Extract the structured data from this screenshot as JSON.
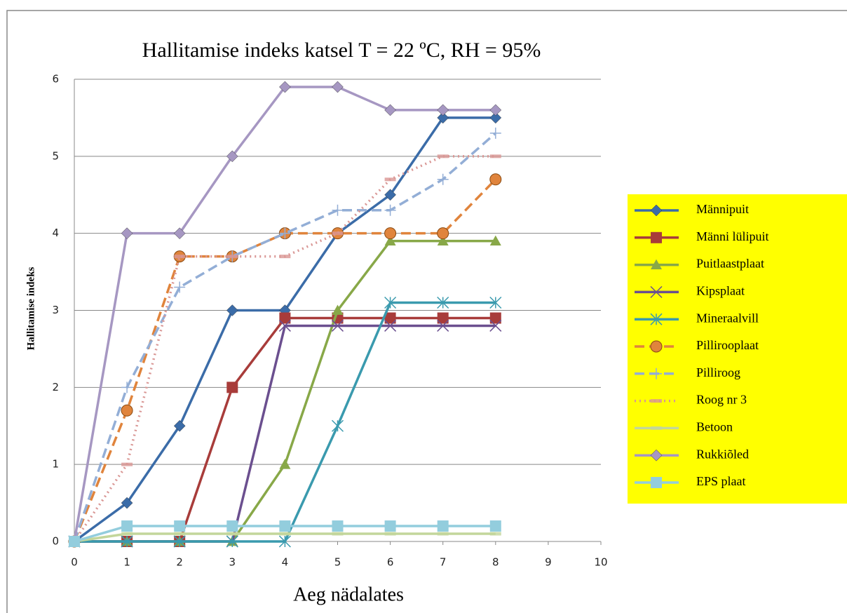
{
  "chart_data": {
    "type": "line",
    "title": "Hallitamise indeks katsel T = 22 ºC, RH = 95%",
    "x_label": "Aeg nädalates",
    "y_label": "Hallitamise indeks",
    "x": [
      0,
      1,
      2,
      3,
      4,
      5,
      6,
      7,
      8
    ],
    "xlim": [
      0,
      10
    ],
    "xticks": [
      0,
      1,
      2,
      3,
      4,
      5,
      6,
      7,
      8,
      9,
      10
    ],
    "ylim": [
      0,
      6
    ],
    "yticks": [
      0,
      1,
      2,
      3,
      4,
      5,
      6
    ],
    "grid": true,
    "legend": "right",
    "series": [
      {
        "name": "Männipuit",
        "color": "#3b6ca8",
        "marker": "diamond",
        "dash": "solid",
        "values": [
          0,
          0.5,
          1.5,
          3,
          3,
          4,
          4.5,
          5.5,
          5.5
        ]
      },
      {
        "name": "Männi lülipuit",
        "color": "#a83c3a",
        "marker": "square",
        "dash": "solid",
        "values": [
          0,
          0,
          0,
          2,
          2.9,
          2.9,
          2.9,
          2.9,
          2.9
        ]
      },
      {
        "name": "Puitlaastplaat",
        "color": "#88a848",
        "marker": "triangle",
        "dash": "solid",
        "values": [
          0,
          0,
          0,
          0,
          1,
          3,
          3.9,
          3.9,
          3.9
        ]
      },
      {
        "name": "Kipsplaat",
        "color": "#6b4f8f",
        "marker": "cross",
        "dash": "solid",
        "values": [
          0,
          0,
          0,
          0,
          2.8,
          2.8,
          2.8,
          2.8,
          2.8
        ]
      },
      {
        "name": "Mineraalvill",
        "color": "#3a9aae",
        "marker": "star",
        "dash": "solid",
        "values": [
          0,
          0,
          0,
          0,
          0,
          1.5,
          3.1,
          3.1,
          3.1
        ]
      },
      {
        "name": "Pillirooplaat",
        "color": "#e0843c",
        "marker": "circle",
        "dash": "dash",
        "values": [
          0,
          1.7,
          3.7,
          3.7,
          4,
          4,
          4,
          4,
          4.7
        ]
      },
      {
        "name": "Pilliroog",
        "color": "#93aed6",
        "marker": "plus",
        "dash": "dash",
        "values": [
          0,
          2,
          3.3,
          3.7,
          4,
          4.3,
          4.3,
          4.7,
          5.3
        ]
      },
      {
        "name": "Roog nr 3",
        "color": "#d99694",
        "marker": "dash",
        "dash": "dot",
        "values": [
          0,
          1,
          3.7,
          3.7,
          3.7,
          4,
          4.7,
          5,
          5
        ]
      },
      {
        "name": "Betoon",
        "color": "#c3d69b",
        "marker": "dash",
        "dash": "solid",
        "values": [
          0,
          0.1,
          0.1,
          0.1,
          0.1,
          0.1,
          0.1,
          0.1,
          0.1
        ]
      },
      {
        "name": "Rukkiõled",
        "color": "#a697c2",
        "marker": "diamond",
        "dash": "solid",
        "values": [
          0,
          4,
          4,
          5,
          5.9,
          5.9,
          5.6,
          5.6,
          5.6
        ]
      },
      {
        "name": "EPS plaat",
        "color": "#93cddd",
        "marker": "square",
        "dash": "solid",
        "values": [
          0,
          0.2,
          0.2,
          0.2,
          0.2,
          0.2,
          0.2,
          0.2,
          0.2
        ]
      }
    ]
  }
}
